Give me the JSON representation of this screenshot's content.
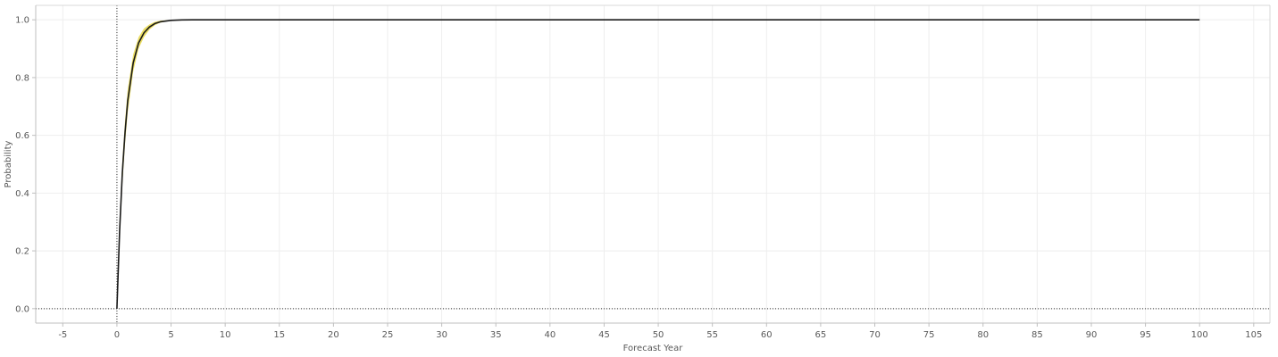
{
  "chart_data": {
    "type": "line",
    "title": "",
    "xlabel": "Forecast Year",
    "ylabel": "Probability",
    "xlim": [
      -7.5,
      106.5
    ],
    "ylim": [
      -0.05,
      1.05
    ],
    "xticks": [
      -5,
      0,
      5,
      10,
      15,
      20,
      25,
      30,
      35,
      40,
      45,
      50,
      55,
      60,
      65,
      70,
      75,
      80,
      85,
      90,
      95,
      100,
      105
    ],
    "yticks": [
      0.0,
      0.2,
      0.4,
      0.6,
      0.8,
      1.0
    ],
    "ytick_labels": [
      "0.0",
      "0.2",
      "0.4",
      "0.6",
      "0.8",
      "1.0"
    ],
    "grid": true,
    "reference_lines": {
      "x": 0,
      "y": 0,
      "style": "dotted"
    },
    "series": [
      {
        "kind": "line",
        "color": "#1a1a1a",
        "x": [
          0,
          0.25,
          0.5,
          0.75,
          1,
          1.5,
          2,
          2.5,
          3,
          3.5,
          4,
          5,
          6,
          7,
          8,
          10,
          100
        ],
        "y": [
          0.0,
          0.27,
          0.47,
          0.61,
          0.72,
          0.85,
          0.92,
          0.955,
          0.975,
          0.987,
          0.993,
          0.998,
          0.9995,
          1.0,
          1.0,
          1.0,
          1.0
        ]
      },
      {
        "kind": "band",
        "color": "#e8d84a",
        "x": [
          0,
          0.25,
          0.5,
          0.75,
          1,
          1.5,
          2,
          2.5,
          3,
          3.5,
          4,
          5,
          6,
          7,
          8,
          10,
          100
        ],
        "lower": [
          0.0,
          0.24,
          0.43,
          0.57,
          0.68,
          0.82,
          0.9,
          0.94,
          0.966,
          0.981,
          0.99,
          0.997,
          0.999,
          1.0,
          1.0,
          1.0,
          1.0
        ],
        "upper": [
          0.0,
          0.3,
          0.51,
          0.65,
          0.76,
          0.88,
          0.94,
          0.97,
          0.984,
          0.993,
          0.997,
          0.999,
          1.0,
          1.0,
          1.0,
          1.0,
          1.0
        ]
      }
    ]
  }
}
